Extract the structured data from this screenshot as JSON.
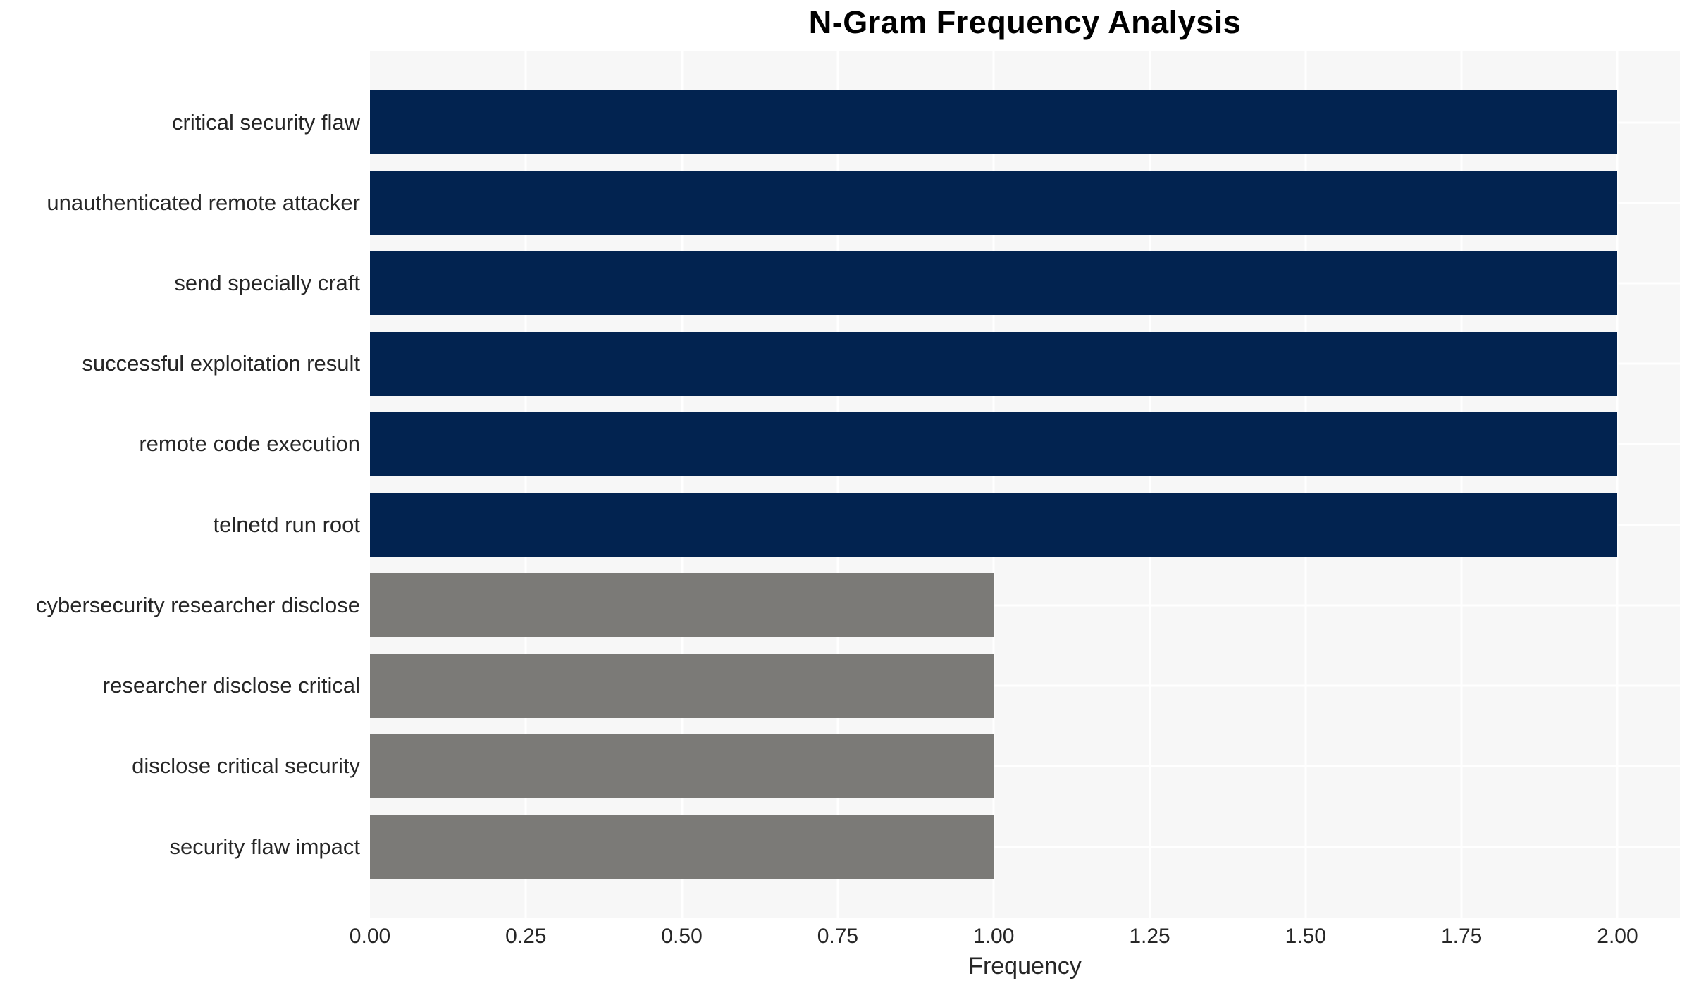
{
  "chart_data": {
    "type": "bar",
    "orientation": "horizontal",
    "title": "N-Gram Frequency Analysis",
    "xlabel": "Frequency",
    "ylabel": "",
    "categories": [
      "critical security flaw",
      "unauthenticated remote attacker",
      "send specially craft",
      "successful exploitation result",
      "remote code execution",
      "telnetd run root",
      "cybersecurity researcher disclose",
      "researcher disclose critical",
      "disclose critical security",
      "security flaw impact"
    ],
    "values": [
      2,
      2,
      2,
      2,
      2,
      2,
      1,
      1,
      1,
      1
    ],
    "bar_colors": [
      "#022350",
      "#022350",
      "#022350",
      "#022350",
      "#022350",
      "#022350",
      "#7b7a77",
      "#7b7a77",
      "#7b7a77",
      "#7b7a77"
    ],
    "xlim": [
      0,
      2.1
    ],
    "xticks": [
      0,
      0.25,
      0.5,
      0.75,
      1.0,
      1.25,
      1.5,
      1.75,
      2.0
    ],
    "xtick_labels": [
      "0.00",
      "0.25",
      "0.50",
      "0.75",
      "1.00",
      "1.25",
      "1.50",
      "1.75",
      "2.00"
    ],
    "grid": "on",
    "legend": "none",
    "colors": {
      "bar_high": "#022350",
      "bar_low": "#7b7a77",
      "plot_background": "#f7f7f7",
      "grid_line": "#ffffff",
      "tick_text": "#262626",
      "title_text": "#000000"
    }
  }
}
